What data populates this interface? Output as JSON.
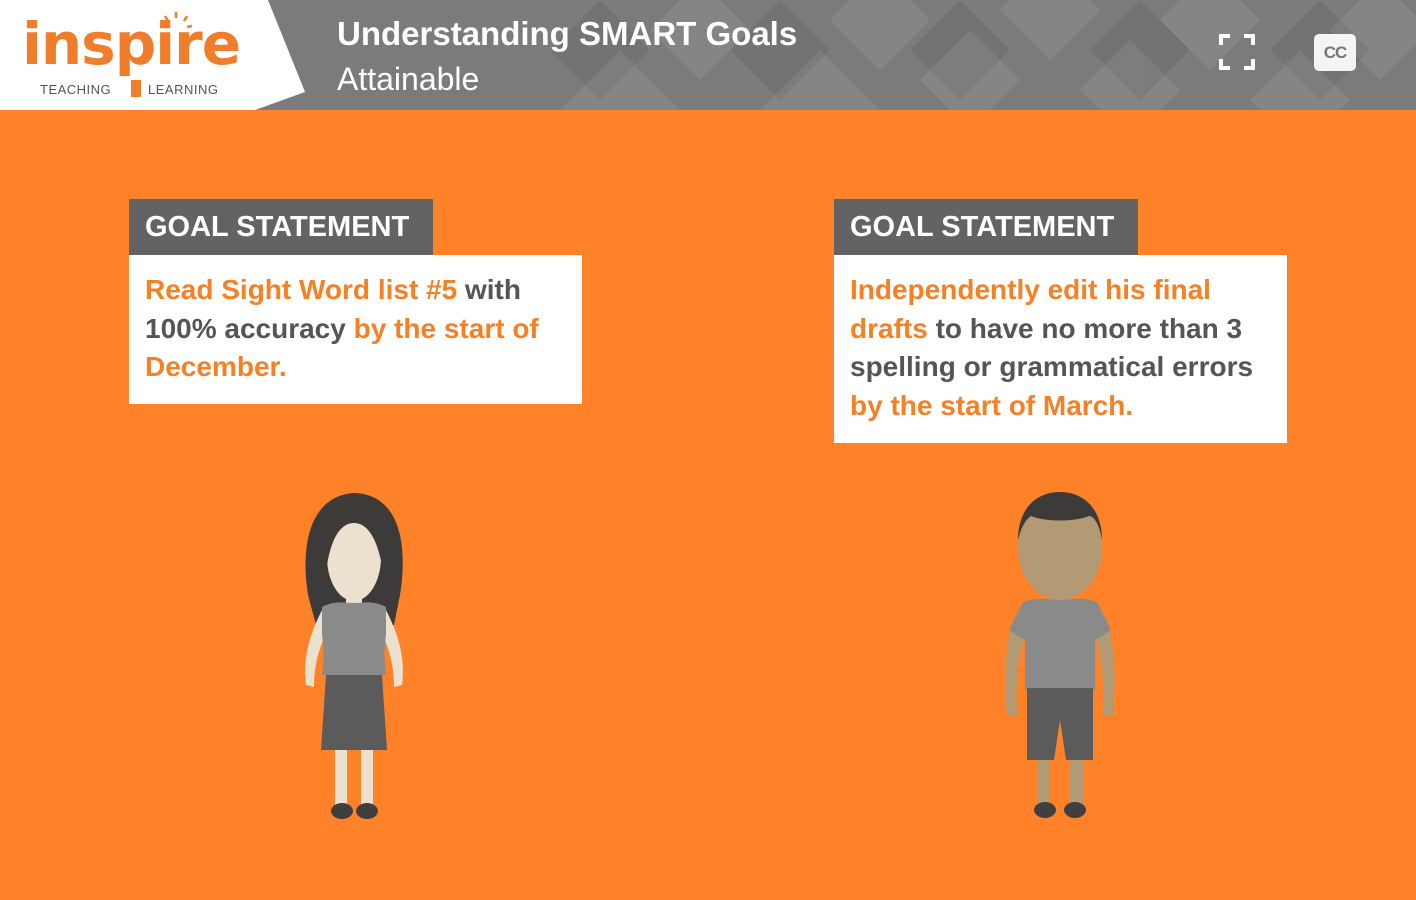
{
  "logo": {
    "word": "inspire",
    "left_text": "TEACHING",
    "right_text": "LEARNING"
  },
  "header": {
    "title": "Understanding SMART Goals",
    "subtitle": "Attainable",
    "cc_label": "CC"
  },
  "goals": [
    {
      "label": "GOAL STATEMENT",
      "segments": [
        {
          "text": "Read Sight Word list #5",
          "highlight": true
        },
        {
          "text": " with 100% accuracy ",
          "highlight": false
        },
        {
          "text": "by the start of December.",
          "highlight": true
        }
      ]
    },
    {
      "label": "GOAL STATEMENT",
      "segments": [
        {
          "text": "Independently edit his final drafts",
          "highlight": true
        },
        {
          "text": " to have no more than 3 spelling or grammatical errors ",
          "highlight": false
        },
        {
          "text": "by the start of March.",
          "highlight": true
        }
      ]
    }
  ],
  "icons": [
    "fullscreen-icon",
    "closed-captions-icon",
    "sun-icon"
  ],
  "colors": {
    "background": "#ff8228",
    "header": "#7b7b7b",
    "label_bg": "#636363",
    "highlight": "#f58025",
    "body_text": "#555555"
  }
}
